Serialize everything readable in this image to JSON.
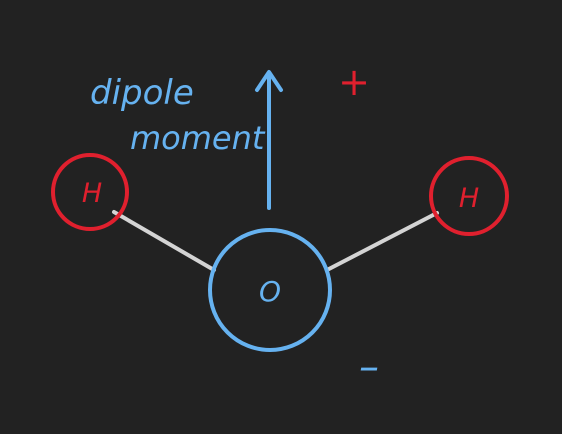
{
  "colors": {
    "background": "#222222",
    "bond": "#d4d4d4",
    "hydrogen": "#e0202e",
    "oxygen": "#66b2f0",
    "dipole": "#66b2f0",
    "positive_charge": "#e0202e",
    "negative_charge": "#66b2f0"
  },
  "atoms": {
    "hydrogen_left_label": "H",
    "hydrogen_right_label": "H",
    "oxygen_label": "O"
  },
  "dipole": {
    "label_line1": "dipole",
    "label_line2": "moment"
  },
  "charges": {
    "positive": "+",
    "negative": "–"
  },
  "icons": {
    "dipole_arrow": "arrow-up-icon"
  }
}
